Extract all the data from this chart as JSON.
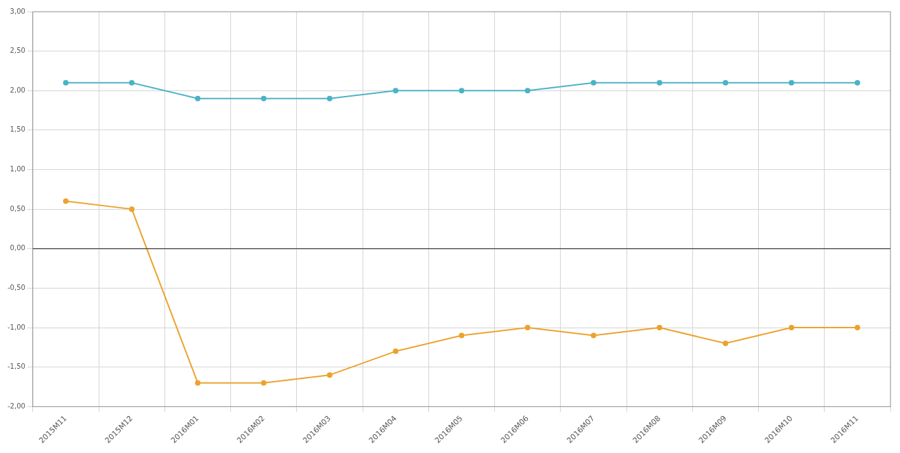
{
  "chart_data": {
    "type": "line",
    "categories": [
      "2015M11",
      "2015M12",
      "2016M01",
      "2016M02",
      "2016M03",
      "2016M04",
      "2016M05",
      "2016M06",
      "2016M07",
      "2016M08",
      "2016M09",
      "2016M10",
      "2016M11"
    ],
    "series": [
      {
        "color": "#4bb3c6",
        "values": [
          2.1,
          2.1,
          1.9,
          1.9,
          1.9,
          2.0,
          2.0,
          2.0,
          2.1,
          2.1,
          2.1,
          2.1,
          2.1
        ]
      },
      {
        "color": "#eca22e",
        "values": [
          0.6,
          0.5,
          -1.7,
          -1.7,
          -1.6,
          -1.3,
          -1.1,
          -1.0,
          -1.1,
          -1.0,
          -1.2,
          -1.0,
          -1.0
        ]
      }
    ],
    "ylim": [
      -2,
      3
    ],
    "yticks": [
      {
        "value": -2,
        "label": "-2,00"
      },
      {
        "value": -1.5,
        "label": "-1,50"
      },
      {
        "value": -1,
        "label": "-1,00"
      },
      {
        "value": -0.5,
        "label": "-0,50"
      },
      {
        "value": 0,
        "label": "0,00"
      },
      {
        "value": 0.5,
        "label": "0,50"
      },
      {
        "value": 1,
        "label": "1,00"
      },
      {
        "value": 1.5,
        "label": "1,50"
      },
      {
        "value": 2,
        "label": "2,00"
      },
      {
        "value": 2.5,
        "label": "2,50"
      },
      {
        "value": 3,
        "label": "3,00"
      }
    ],
    "ref_lines": [
      {
        "axis": "y",
        "value": 0,
        "color": "#555555"
      }
    ],
    "grid": true,
    "legend": false,
    "marker": "circle",
    "line_style": "solid"
  }
}
